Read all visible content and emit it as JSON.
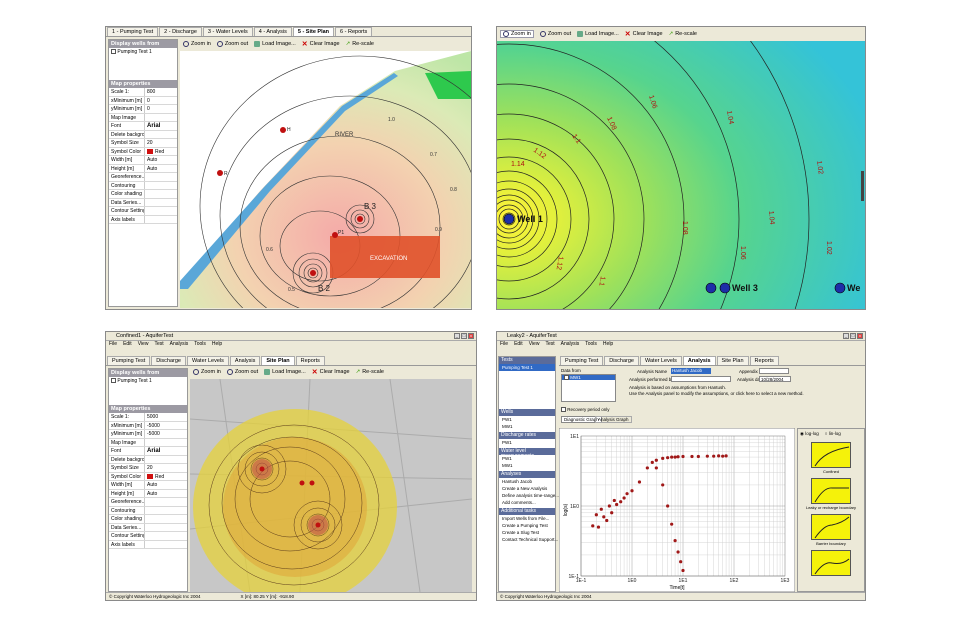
{
  "q1": {
    "tabs": [
      "1 - Pumping Test",
      "2 - Discharge",
      "3 - Water Levels",
      "4 - Analysis",
      "5 - Site Plan",
      "6 - Reports"
    ],
    "active_tab": "5 - Site Plan",
    "toolbar": {
      "zoom_in": "Zoom in",
      "zoom_out": "Zoom out",
      "load_image": "Load Image...",
      "clear_image": "Clear Image",
      "rescale": "Re-scale"
    },
    "side_header": "Display wells from",
    "side_item": "Pumping Test 1",
    "props_header": "Map properties",
    "props": [
      {
        "k": "Scale 1:",
        "v": "800"
      },
      {
        "k": "xMinimum [m]",
        "v": "0"
      },
      {
        "k": "yMinimum [m]",
        "v": "0"
      },
      {
        "k": "Map Image",
        "v": ""
      },
      {
        "k": "Font",
        "v": "Arial"
      },
      {
        "k": "Delete background",
        "v": ""
      },
      {
        "k": "Symbol Size",
        "v": "20"
      },
      {
        "k": "Symbol Color",
        "v": "Red"
      },
      {
        "k": "Width [m]",
        "v": "Auto"
      },
      {
        "k": "Height [m]",
        "v": "Auto"
      },
      {
        "k": "Georeference...",
        "v": ""
      },
      {
        "k": "Contouring",
        "v": ""
      },
      {
        "k": "Color shading",
        "v": ""
      },
      {
        "k": "Data Series...",
        "v": ""
      },
      {
        "k": "Contour Settings...",
        "v": ""
      },
      {
        "k": "Axis labels",
        "v": ""
      }
    ],
    "map_labels": {
      "river": "RIVER",
      "excavation": "EXCAVATION",
      "b2": "B 2",
      "b3": "B 3",
      "h": "H",
      "r": "R",
      "p1": "P1"
    },
    "contour_labels": [
      "0.5",
      "0.6",
      "0.7",
      "0.8",
      "0.9",
      "1.0"
    ]
  },
  "q2": {
    "toolbar": {
      "zoom_in": "Zoom in",
      "zoom_out": "Zoom out",
      "load_image": "Load Image...",
      "clear_image": "Clear Image",
      "rescale": "Re-scale"
    },
    "wells": [
      "Well 1",
      "Well 3",
      "We"
    ],
    "contour_labels": [
      "1.14",
      "1.12",
      "1.1",
      "1.08",
      "1.06",
      "1.04",
      "1.02",
      "1.08",
      "1.06",
      "1.04",
      "1.02",
      "1.12",
      "1.1"
    ]
  },
  "q3": {
    "title": "Confined1 - AquiferTest",
    "menu": [
      "File",
      "Edit",
      "View",
      "Test",
      "Analysis",
      "Tools",
      "Help"
    ],
    "tabs": [
      "Pumping Test",
      "Discharge",
      "Water Levels",
      "Analysis",
      "Site Plan",
      "Reports"
    ],
    "toolbar": {
      "zoom_in": "Zoom in",
      "zoom_out": "Zoom out",
      "load_image": "Load Image...",
      "clear_image": "Clear Image",
      "rescale": "Re-scale"
    },
    "side_header": "Display wells from",
    "side_item": "Pumping Test 1",
    "props_header": "Map properties",
    "props": [
      {
        "k": "Scale 1:",
        "v": "5000"
      },
      {
        "k": "xMinimum [m]",
        "v": "-5000"
      },
      {
        "k": "yMinimum [m]",
        "v": "-5000"
      },
      {
        "k": "Map Image",
        "v": ""
      },
      {
        "k": "Font",
        "v": "Arial"
      },
      {
        "k": "Delete background",
        "v": ""
      },
      {
        "k": "Symbol Size",
        "v": "20"
      },
      {
        "k": "Symbol Color",
        "v": "Red"
      },
      {
        "k": "Width [m]",
        "v": "Auto"
      },
      {
        "k": "Height [m]",
        "v": "Auto"
      },
      {
        "k": "Georeference...",
        "v": ""
      },
      {
        "k": "Contouring",
        "v": ""
      },
      {
        "k": "Color shading",
        "v": ""
      },
      {
        "k": "Data Series...",
        "v": ""
      },
      {
        "k": "Contour Settings...",
        "v": ""
      },
      {
        "k": "Axis labels",
        "v": ""
      }
    ],
    "status": {
      "copyright": "© Copyright Waterloo Hydrogeologic Inc 2004",
      "coords": "X [m]: 80.25   Y [m]: -918.90"
    }
  },
  "q4": {
    "title": "Leaky2 - AquiferTest",
    "menu": [
      "File",
      "Edit",
      "View",
      "Test",
      "Analysis",
      "Tools",
      "Help"
    ],
    "tabs": [
      "Pumping Test",
      "Discharge",
      "Water Levels",
      "Analysis",
      "Site Plan",
      "Reports"
    ],
    "tree": {
      "tests_head": "Tests",
      "tests": [
        "Pumping Test 1"
      ],
      "wells_head": "Wells",
      "wells": [
        "PW1",
        "MW1"
      ],
      "discharge_head": "Discharge rates",
      "discharge": [
        "PW1"
      ],
      "wl_head": "Water level measurements",
      "wl": [
        "PW1",
        "MW1"
      ],
      "analyses_head": "Analyses",
      "analyses": [
        "Hantush Jacob",
        "Create a New Analysis",
        "Define analysis time-range...",
        "Add comments..."
      ],
      "tasks_head": "Additional tasks",
      "tasks": [
        "Import Wells from File...",
        "Create a Pumping Test",
        "Create a Slug Test",
        "Contact Technical Support..."
      ]
    },
    "data_from": "Data from",
    "data_item": "MW1",
    "analysis_name_label": "Analysis Name",
    "analysis_name": "Hantush Jacob",
    "appendix_label": "Appendix",
    "performed_by_label": "Analysis performed by",
    "date_label": "Analysis date",
    "date": "10/28/2004",
    "note1": "Analysis is based on assumptions from Hantush.",
    "note2": "Use the Analysis panel to modify the assumptions, or click here to select a new method.",
    "recovery": "Recovery period only",
    "graph_tabs": [
      "Diagnostic Graph",
      "Analysis Graph"
    ],
    "options": [
      "log-log",
      "lin-log"
    ],
    "diagnostics": [
      "Confined",
      "Leaky or recharge boundary",
      "Barrier boundary",
      ""
    ],
    "status": {
      "copyright": "© Copyright Waterloo Hydrogeologic Inc 2004"
    }
  },
  "chart_data": {
    "type": "scatter",
    "x_scale": "log",
    "y_scale": "log",
    "xlabel": "Time[t]",
    "ylabel": "log(s)",
    "x_ticks": [
      "1E-1",
      "1E0",
      "1E1",
      "1E2",
      "1E3"
    ],
    "y_ticks": [
      "1E1",
      "1E0",
      "1E-1"
    ],
    "xlim": [
      0.1,
      1000
    ],
    "ylim": [
      0.1,
      10
    ],
    "series": [
      {
        "x": [
          0.17,
          0.2,
          0.22,
          0.25,
          0.28,
          0.32,
          0.36,
          0.4,
          0.45,
          0.5,
          0.6,
          0.7,
          0.8,
          1.0,
          1.4,
          2,
          2.5,
          3,
          4,
          5,
          6,
          7,
          8,
          10,
          15,
          20,
          30,
          40,
          50,
          60,
          70
        ],
        "y": [
          0.52,
          0.75,
          0.5,
          0.9,
          0.7,
          0.62,
          1.0,
          0.8,
          1.2,
          1.05,
          1.15,
          1.3,
          1.5,
          1.65,
          2.2,
          3.5,
          4.2,
          4.5,
          4.8,
          4.9,
          5.0,
          5.0,
          5.05,
          5.1,
          5.1,
          5.1,
          5.15,
          5.15,
          5.2,
          5.15,
          5.2
        ]
      },
      {
        "x": [
          3,
          4,
          5,
          6,
          7,
          8,
          9,
          10
        ],
        "y": [
          3.5,
          2.0,
          1.0,
          0.55,
          0.32,
          0.22,
          0.16,
          0.12
        ]
      }
    ]
  }
}
